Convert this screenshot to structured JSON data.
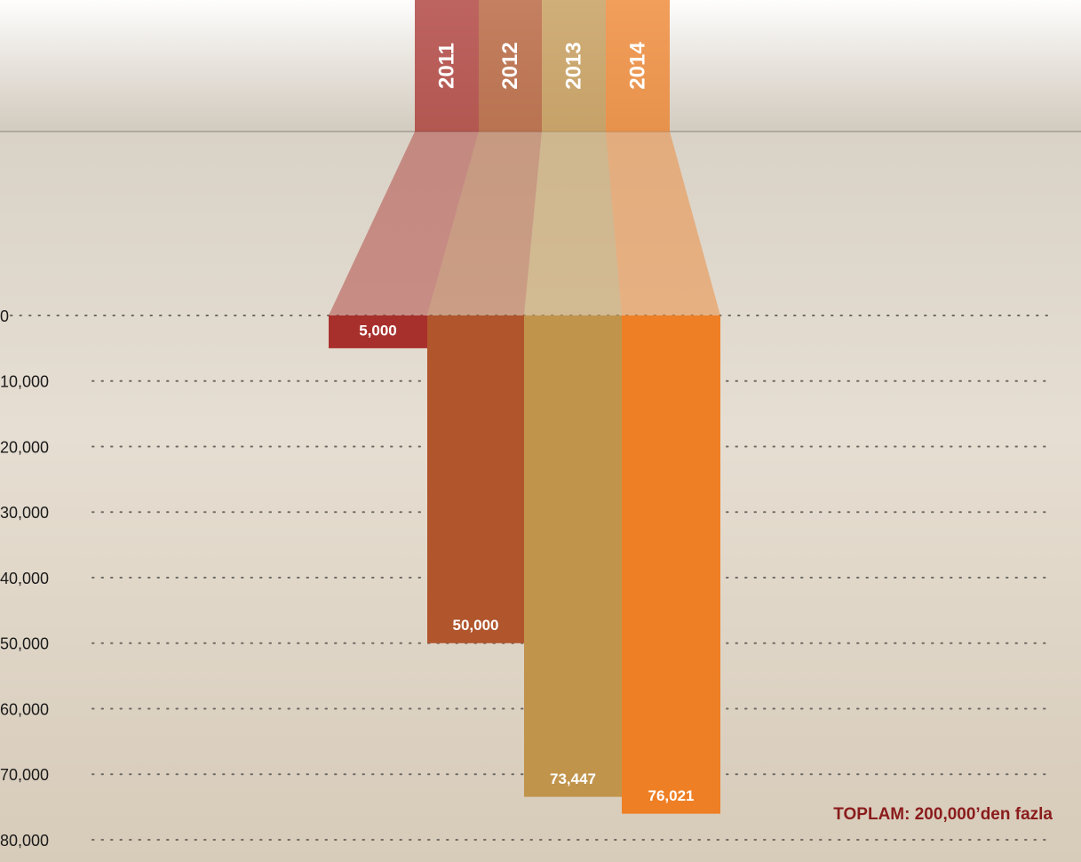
{
  "chart_data": {
    "type": "bar",
    "categories": [
      "2011",
      "2012",
      "2013",
      "2014"
    ],
    "values": [
      5000,
      50000,
      73447,
      76021
    ],
    "value_labels": [
      "5,000",
      "50,000",
      "73,447",
      "76,021"
    ],
    "colors": [
      "#a8302c",
      "#b0552c",
      "#c1944c",
      "#ee7f25"
    ],
    "ylim": [
      0,
      80000
    ],
    "yticks": [
      0,
      {
        "value": 10000,
        "label": "10,000"
      },
      {
        "value": 20000,
        "label": "20,000"
      },
      {
        "value": 30000,
        "label": "30,000"
      },
      {
        "value": 40000,
        "label": "40,000"
      },
      {
        "value": 50000,
        "label": "50,000"
      },
      {
        "value": 60000,
        "label": "60,000"
      },
      {
        "value": 70000,
        "label": "70,000"
      },
      {
        "value": 80000,
        "label": "80,000"
      }
    ],
    "y_inverted": true,
    "grid": true,
    "annotation": "TOPLAM: 200,000’den fazla"
  }
}
